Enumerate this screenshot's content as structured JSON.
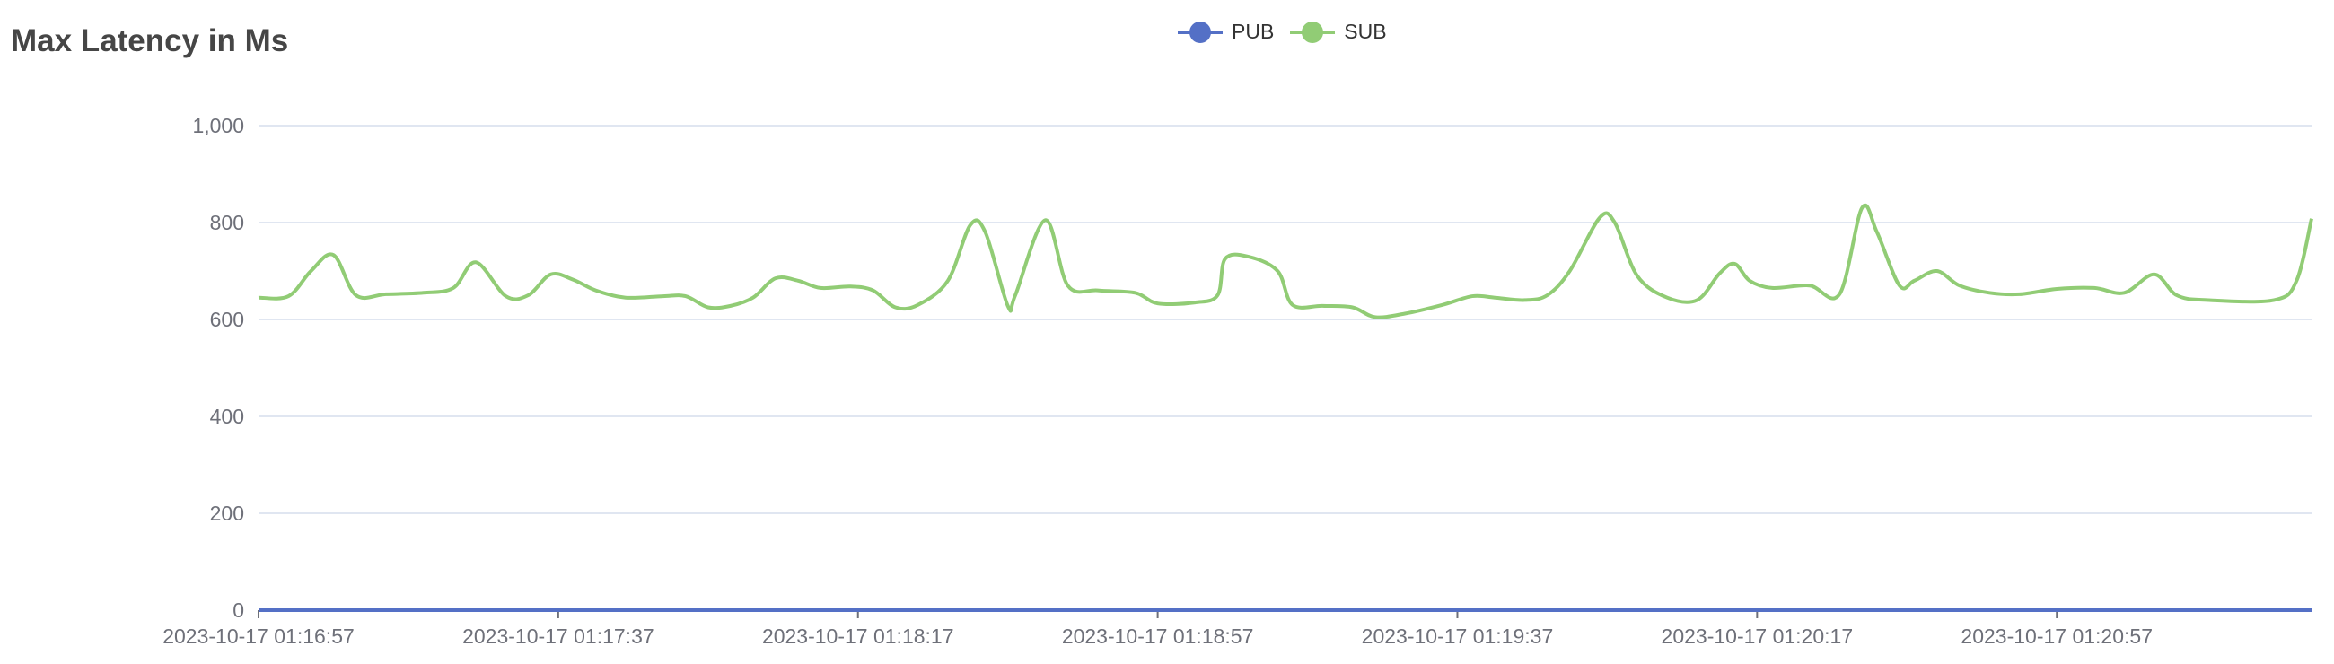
{
  "chart_data": {
    "type": "line",
    "title": "Max Latency in Ms",
    "xlabel": "",
    "ylabel": "",
    "ylim": [
      0,
      1000
    ],
    "yticks": [
      "0",
      "200",
      "400",
      "600",
      "800",
      "1,000"
    ],
    "ytick_values": [
      0,
      200,
      400,
      600,
      800,
      1000
    ],
    "x_unit": "seconds since 2023-10-17 01:16:57",
    "xlim": [
      0,
      274
    ],
    "xticks": [
      "2023-10-17 01:16:57",
      "2023-10-17 01:17:37",
      "2023-10-17 01:18:17",
      "2023-10-17 01:18:57",
      "2023-10-17 01:19:37",
      "2023-10-17 01:20:17",
      "2023-10-17 01:20:57"
    ],
    "xtick_values": [
      0,
      40,
      80,
      120,
      160,
      200,
      240
    ],
    "grid": true,
    "legend_position": "top-center",
    "series": [
      {
        "name": "PUB",
        "color": "#5470c6",
        "x": [
          0,
          274
        ],
        "values": [
          0,
          0
        ]
      },
      {
        "name": "SUB",
        "color": "#91cc75",
        "x": [
          0,
          4,
          7,
          10,
          13,
          17,
          22,
          26,
          29,
          33,
          36,
          39,
          42,
          45,
          49,
          54,
          57,
          60,
          63,
          66,
          69,
          72,
          75,
          79,
          82,
          85,
          88,
          92,
          95,
          97,
          100,
          101,
          105,
          108,
          112,
          117,
          120,
          125,
          128,
          129,
          132,
          136,
          138,
          142,
          146,
          149,
          153,
          158,
          162,
          165,
          169,
          172,
          175,
          179,
          181,
          184,
          188,
          192,
          195,
          197,
          199,
          202,
          207,
          211,
          214,
          216,
          219,
          221,
          224,
          227,
          231,
          235,
          240,
          245,
          249,
          253,
          256,
          260,
          269,
          272,
          274
        ],
        "values": [
          645,
          648,
          700,
          733,
          650,
          652,
          655,
          665,
          718,
          648,
          650,
          693,
          682,
          660,
          645,
          648,
          648,
          625,
          628,
          645,
          685,
          680,
          665,
          668,
          660,
          625,
          630,
          680,
          795,
          780,
          628,
          650,
          805,
          670,
          660,
          655,
          633,
          635,
          650,
          725,
          730,
          700,
          630,
          628,
          625,
          605,
          612,
          630,
          648,
          645,
          640,
          650,
          700,
          810,
          800,
          690,
          645,
          640,
          695,
          715,
          680,
          665,
          670,
          652,
          830,
          780,
          670,
          680,
          700,
          670,
          655,
          652,
          663,
          665,
          655,
          693,
          650,
          640,
          640,
          680,
          808
        ]
      }
    ]
  }
}
